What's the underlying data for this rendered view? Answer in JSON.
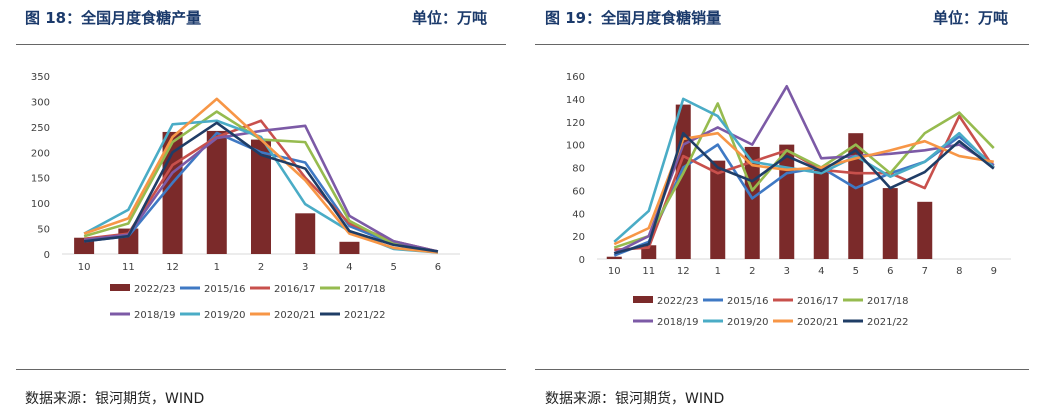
{
  "colors": {
    "title": "#1b3a6b",
    "bar": "#7b2a2a",
    "axis": "#d9d9d9",
    "series": {
      "2022/23": "#7b2a2a",
      "2015/16": "#3f79c4",
      "2016/17": "#c8504c",
      "2017/18": "#96bb4f",
      "2018/19": "#7c5aa6",
      "2019/20": "#4aacc6",
      "2020/21": "#f79646",
      "2021/22": "#1f3d66"
    }
  },
  "chart_data": [
    {
      "type": "bar+line",
      "title": "图 18：全国月度食糖产量",
      "unit": "单位：万吨",
      "source": "数据来源：银河期货，WIND",
      "categories": [
        "10",
        "11",
        "12",
        "1",
        "2",
        "3",
        "4",
        "5",
        "6"
      ],
      "ylim": [
        0,
        350
      ],
      "yticks": [
        0,
        50,
        100,
        150,
        200,
        250,
        300,
        350
      ],
      "bar_series": {
        "name": "2022/23",
        "values": [
          32,
          50,
          240,
          242,
          225,
          80,
          24,
          null,
          null
        ]
      },
      "line_series": [
        {
          "name": "2015/16",
          "values": [
            25,
            35,
            140,
            238,
            200,
            180,
            55,
            20,
            5
          ]
        },
        {
          "name": "2016/17",
          "values": [
            30,
            40,
            175,
            230,
            262,
            150,
            60,
            25,
            5
          ]
        },
        {
          "name": "2017/18",
          "values": [
            35,
            60,
            220,
            280,
            225,
            220,
            65,
            20,
            3
          ]
        },
        {
          "name": "2018/19",
          "values": [
            28,
            38,
            160,
            228,
            242,
            252,
            75,
            25,
            5
          ]
        },
        {
          "name": "2019/20",
          "values": [
            40,
            87,
            255,
            262,
            230,
            98,
            45,
            10,
            3
          ]
        },
        {
          "name": "2020/21",
          "values": [
            40,
            70,
            230,
            305,
            225,
            145,
            40,
            12,
            3
          ]
        },
        {
          "name": "2021/22",
          "values": [
            25,
            35,
            200,
            258,
            195,
            168,
            45,
            18,
            5
          ]
        }
      ],
      "legend": [
        "2022/23",
        "2015/16",
        "2016/17",
        "2017/18",
        "2018/19",
        "2019/20",
        "2020/21",
        "2021/22"
      ]
    },
    {
      "type": "bar+line",
      "title": "图 19：全国月度食糖销量",
      "unit": "单位：万吨",
      "source": "数据来源：银河期货，WIND",
      "categories": [
        "10",
        "11",
        "12",
        "1",
        "2",
        "3",
        "4",
        "5",
        "6",
        "7",
        "8",
        "9"
      ],
      "ylim": [
        0,
        160
      ],
      "yticks": [
        0,
        20,
        40,
        60,
        80,
        100,
        120,
        140,
        160
      ],
      "bar_series": {
        "name": "2022/23",
        "values": [
          2,
          12,
          135,
          86,
          98,
          100,
          78,
          110,
          62,
          50,
          null,
          null
        ]
      },
      "line_series": [
        {
          "name": "2015/16",
          "values": [
            3,
            15,
            80,
            100,
            53,
            75,
            80,
            62,
            75,
            85,
            107,
            82
          ]
        },
        {
          "name": "2016/17",
          "values": [
            8,
            10,
            90,
            75,
            85,
            95,
            78,
            75,
            75,
            62,
            125,
            80
          ]
        },
        {
          "name": "2017/18",
          "values": [
            10,
            20,
            75,
            136,
            60,
            95,
            80,
            100,
            75,
            110,
            128,
            97
          ]
        },
        {
          "name": "2018/19",
          "values": [
            5,
            20,
            100,
            115,
            100,
            151,
            88,
            90,
            92,
            95,
            100,
            82
          ]
        },
        {
          "name": "2019/20",
          "values": [
            15,
            42,
            140,
            125,
            85,
            80,
            75,
            90,
            72,
            85,
            110,
            80
          ]
        },
        {
          "name": "2020/21",
          "values": [
            13,
            27,
            105,
            110,
            82,
            78,
            80,
            88,
            95,
            103,
            90,
            85
          ]
        },
        {
          "name": "2021/22",
          "values": [
            5,
            13,
            110,
            80,
            68,
            90,
            77,
            95,
            62,
            76,
            103,
            79
          ]
        }
      ],
      "legend": [
        "2022/23",
        "2015/16",
        "2016/17",
        "2017/18",
        "2018/19",
        "2019/20",
        "2020/21",
        "2021/22"
      ]
    }
  ]
}
